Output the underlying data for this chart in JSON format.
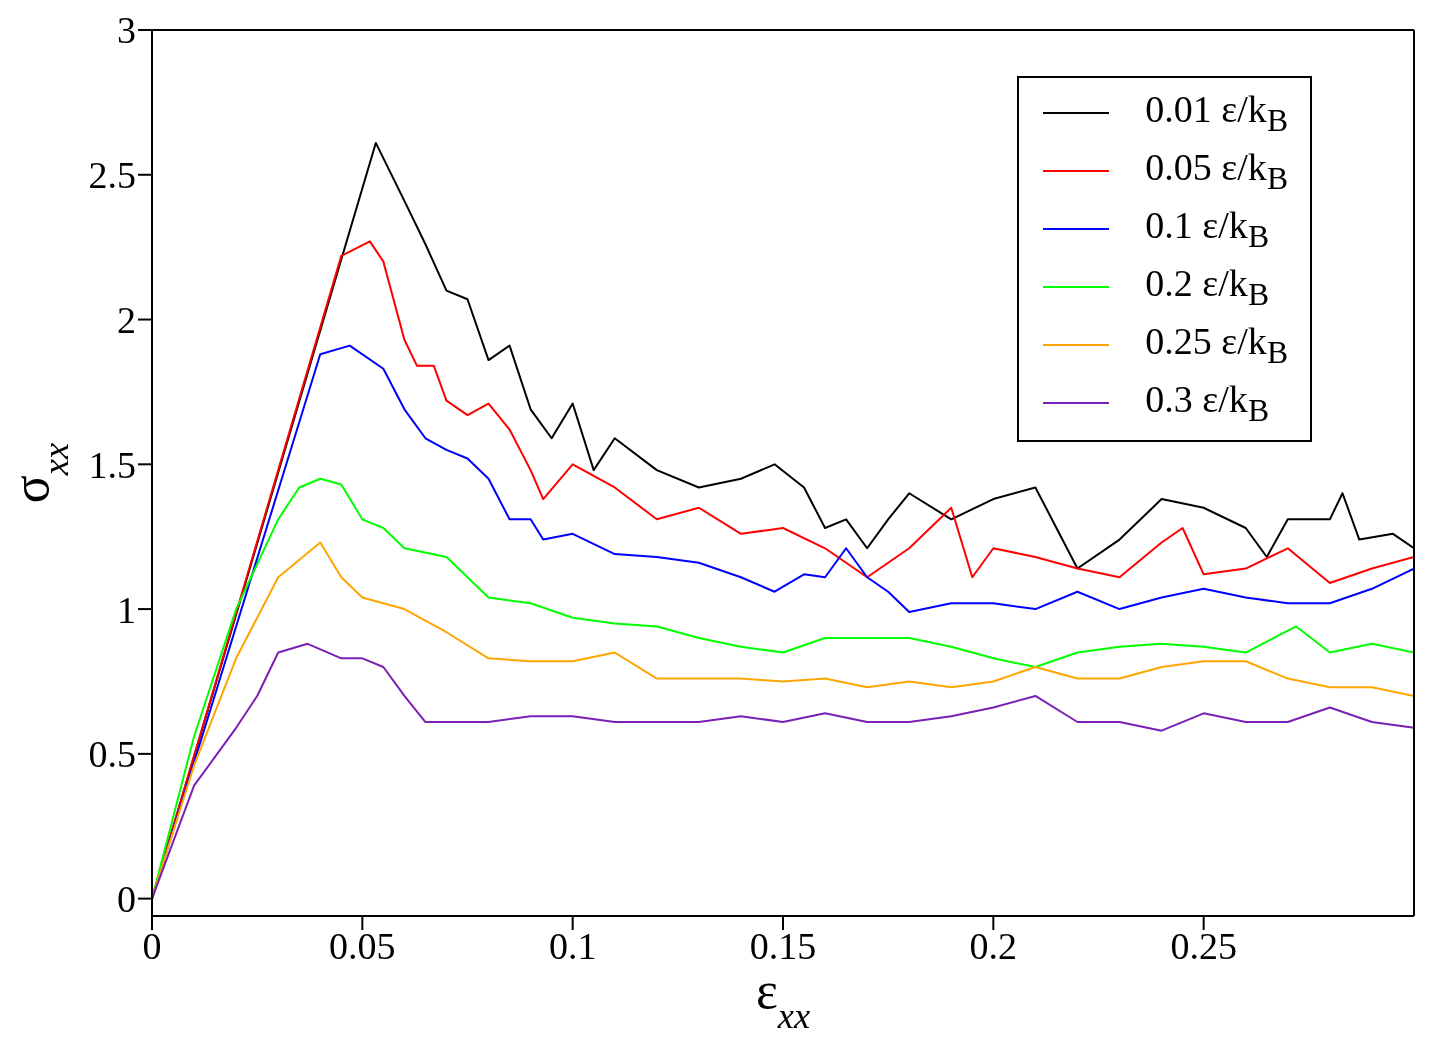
{
  "chart_data": {
    "type": "line",
    "xlabel": "ε$_{xx}$",
    "ylabel": "σ$_{xx}$",
    "xlim": [
      0,
      0.3
    ],
    "xticks": [
      0,
      0.05,
      0.1,
      0.15,
      0.2,
      0.25
    ],
    "ylim": [
      -0.06,
      3
    ],
    "yticks": [
      0,
      0.5,
      1,
      1.5,
      2,
      2.5,
      3
    ],
    "legend": "top right",
    "marker": "none",
    "line_style": "solid",
    "series": [
      {
        "name": "0.01 ε/k$_{B}$",
        "color": "#000000",
        "x": [
          0,
          0.0532,
          0.06,
          0.065,
          0.07,
          0.075,
          0.08,
          0.085,
          0.09,
          0.095,
          0.1,
          0.105,
          0.11,
          0.12,
          0.13,
          0.14,
          0.148,
          0.155,
          0.16,
          0.165,
          0.17,
          0.175,
          0.18,
          0.19,
          0.2,
          0.21,
          0.215,
          0.22,
          0.23,
          0.24,
          0.25,
          0.26,
          0.265,
          0.27,
          0.28,
          0.283,
          0.287,
          0.295,
          0.3
        ],
        "values": [
          0,
          2.61,
          2.41,
          2.26,
          2.1,
          2.07,
          1.86,
          1.91,
          1.69,
          1.59,
          1.71,
          1.48,
          1.59,
          1.48,
          1.42,
          1.45,
          1.5,
          1.42,
          1.28,
          1.31,
          1.21,
          1.31,
          1.4,
          1.31,
          1.38,
          1.42,
          1.28,
          1.14,
          1.24,
          1.38,
          1.35,
          1.28,
          1.18,
          1.31,
          1.31,
          1.4,
          1.24,
          1.26,
          1.21
        ]
      },
      {
        "name": "0.05 ε/k$_{B}$",
        "color": "#ff0000",
        "x": [
          0,
          0.045,
          0.0518,
          0.055,
          0.06,
          0.063,
          0.067,
          0.07,
          0.075,
          0.08,
          0.085,
          0.09,
          0.093,
          0.1,
          0.11,
          0.12,
          0.13,
          0.14,
          0.15,
          0.16,
          0.17,
          0.18,
          0.19,
          0.195,
          0.2,
          0.21,
          0.22,
          0.23,
          0.24,
          0.245,
          0.25,
          0.26,
          0.27,
          0.28,
          0.29,
          0.3
        ],
        "values": [
          0,
          2.22,
          2.27,
          2.2,
          1.93,
          1.84,
          1.84,
          1.72,
          1.67,
          1.71,
          1.62,
          1.48,
          1.38,
          1.5,
          1.42,
          1.31,
          1.35,
          1.26,
          1.28,
          1.21,
          1.11,
          1.21,
          1.35,
          1.11,
          1.21,
          1.18,
          1.14,
          1.11,
          1.23,
          1.28,
          1.12,
          1.14,
          1.21,
          1.09,
          1.14,
          1.18
        ]
      },
      {
        "name": "0.1 ε/k$_{B}$",
        "color": "#0000ff",
        "x": [
          0,
          0.04,
          0.047,
          0.055,
          0.06,
          0.065,
          0.07,
          0.075,
          0.08,
          0.085,
          0.09,
          0.093,
          0.1,
          0.11,
          0.12,
          0.13,
          0.14,
          0.148,
          0.155,
          0.16,
          0.165,
          0.17,
          0.175,
          0.18,
          0.19,
          0.2,
          0.21,
          0.22,
          0.23,
          0.24,
          0.25,
          0.26,
          0.27,
          0.28,
          0.29,
          0.3
        ],
        "values": [
          0,
          1.88,
          1.91,
          1.83,
          1.69,
          1.59,
          1.55,
          1.52,
          1.45,
          1.31,
          1.31,
          1.24,
          1.26,
          1.19,
          1.18,
          1.16,
          1.11,
          1.06,
          1.12,
          1.11,
          1.21,
          1.11,
          1.06,
          0.99,
          1.02,
          1.02,
          1.0,
          1.06,
          1.0,
          1.04,
          1.07,
          1.04,
          1.02,
          1.02,
          1.07,
          1.14
        ]
      },
      {
        "name": "0.2 ε/k$_{B}$",
        "color": "#00ff00",
        "x": [
          0,
          0.01,
          0.02,
          0.03,
          0.035,
          0.04,
          0.045,
          0.05,
          0.055,
          0.06,
          0.07,
          0.08,
          0.09,
          0.1,
          0.11,
          0.12,
          0.13,
          0.14,
          0.15,
          0.16,
          0.17,
          0.18,
          0.19,
          0.2,
          0.21,
          0.22,
          0.23,
          0.24,
          0.25,
          0.26,
          0.272,
          0.28,
          0.29,
          0.3
        ],
        "values": [
          0,
          0.56,
          1.0,
          1.31,
          1.42,
          1.45,
          1.43,
          1.31,
          1.28,
          1.21,
          1.18,
          1.04,
          1.02,
          0.97,
          0.95,
          0.94,
          0.9,
          0.87,
          0.85,
          0.9,
          0.9,
          0.9,
          0.87,
          0.83,
          0.8,
          0.85,
          0.87,
          0.88,
          0.87,
          0.85,
          0.94,
          0.85,
          0.88,
          0.85
        ]
      },
      {
        "name": "0.25 ε/k$_{B}$",
        "color": "#ffa500",
        "x": [
          0,
          0.01,
          0.02,
          0.03,
          0.04,
          0.045,
          0.05,
          0.06,
          0.07,
          0.08,
          0.09,
          0.1,
          0.11,
          0.12,
          0.13,
          0.14,
          0.15,
          0.16,
          0.17,
          0.18,
          0.19,
          0.2,
          0.21,
          0.22,
          0.23,
          0.24,
          0.25,
          0.26,
          0.27,
          0.28,
          0.29,
          0.3
        ],
        "values": [
          0,
          0.46,
          0.83,
          1.11,
          1.23,
          1.11,
          1.04,
          1.0,
          0.92,
          0.83,
          0.82,
          0.82,
          0.85,
          0.76,
          0.76,
          0.76,
          0.75,
          0.76,
          0.73,
          0.75,
          0.73,
          0.75,
          0.8,
          0.76,
          0.76,
          0.8,
          0.82,
          0.82,
          0.76,
          0.73,
          0.73,
          0.7
        ]
      },
      {
        "name": "0.3 ε/k$_{B}$",
        "color": "#7b1fb5",
        "x": [
          0,
          0.01,
          0.02,
          0.025,
          0.03,
          0.037,
          0.045,
          0.05,
          0.055,
          0.06,
          0.065,
          0.07,
          0.08,
          0.09,
          0.1,
          0.11,
          0.12,
          0.13,
          0.14,
          0.15,
          0.16,
          0.17,
          0.18,
          0.19,
          0.2,
          0.21,
          0.22,
          0.23,
          0.24,
          0.25,
          0.26,
          0.27,
          0.28,
          0.29,
          0.3
        ],
        "values": [
          0,
          0.39,
          0.59,
          0.7,
          0.85,
          0.88,
          0.83,
          0.83,
          0.8,
          0.7,
          0.61,
          0.61,
          0.61,
          0.63,
          0.63,
          0.61,
          0.61,
          0.61,
          0.63,
          0.61,
          0.64,
          0.61,
          0.61,
          0.63,
          0.66,
          0.7,
          0.61,
          0.61,
          0.58,
          0.64,
          0.61,
          0.61,
          0.66,
          0.61,
          0.59
        ]
      }
    ]
  }
}
